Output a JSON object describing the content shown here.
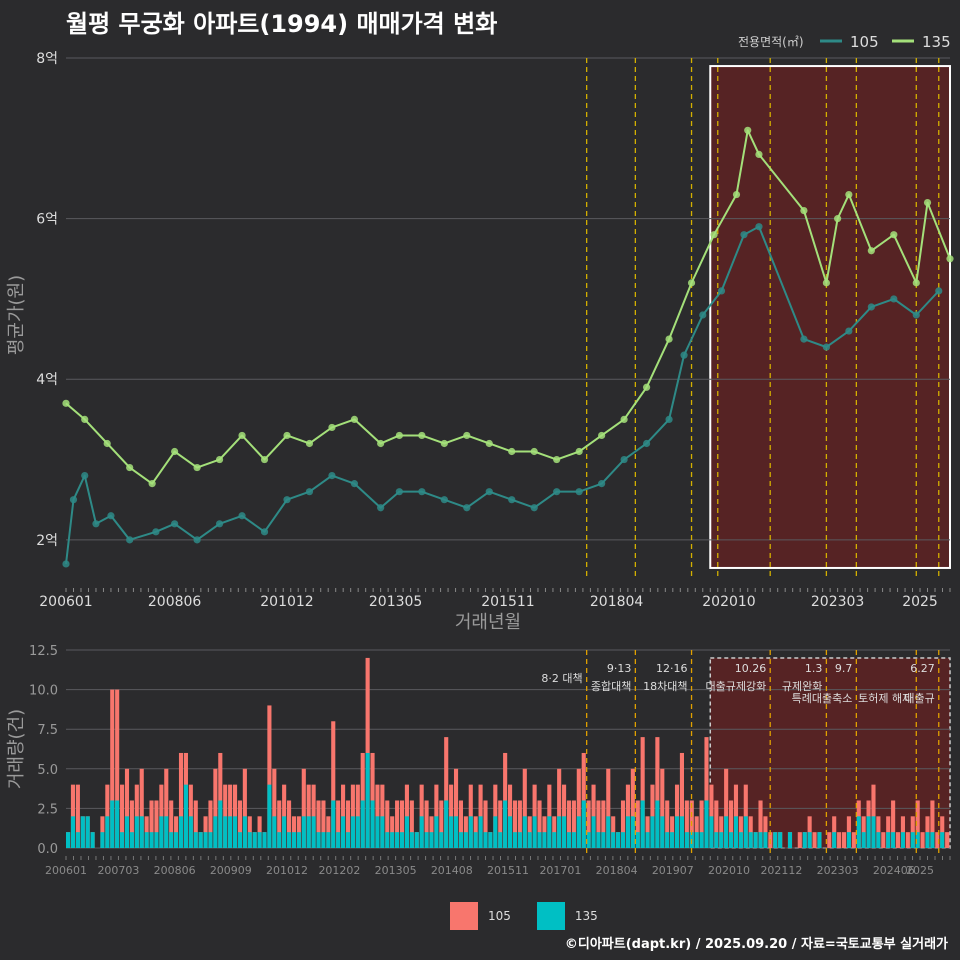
{
  "title": "월평 무궁화 아파트(1994) 매매가격 변화",
  "footer": "©디아파트(dapt.kr) / 2025.09.20 / 자료=국토교통부 실거래가",
  "colors": {
    "s105": "#2e8a87",
    "s135": "#a4e07a",
    "bar105": "#f8766d",
    "bar135": "#00bfc4",
    "policy": "#d4b000",
    "recent_box": "#ffffff",
    "recent_fill": "#7a1e1e"
  },
  "chart_data": [
    {
      "type": "line",
      "title": "",
      "xlabel": "거래년월",
      "ylabel": "평균가(원)",
      "legend": {
        "title": "전용면적(㎡)",
        "position": "top-right",
        "entries": [
          "105",
          "135"
        ]
      },
      "x_ticks": [
        "200601",
        "200806",
        "201012",
        "201305",
        "201511",
        "201804",
        "202010",
        "202303",
        "2025"
      ],
      "y_ticks": [
        "2억",
        "4억",
        "6억",
        "8억"
      ],
      "ylim_eok": [
        1.5,
        8.1
      ],
      "x_range": [
        "2006-01",
        "2025-09"
      ],
      "policy_lines": [
        "2017-08",
        "2018-09",
        "2019-12",
        "2020-07",
        "2021-09",
        "2022-12",
        "2023-08",
        "2024-12",
        "2025-06"
      ],
      "recent_box": {
        "from": "2020-05",
        "to": "2025-09"
      },
      "series": [
        {
          "name": "105",
          "points": [
            [
              "2006-01",
              1.7
            ],
            [
              "2006-03",
              2.5
            ],
            [
              "2006-06",
              2.8
            ],
            [
              "2006-09",
              2.2
            ],
            [
              "2007-01",
              2.3
            ],
            [
              "2007-06",
              2.0
            ],
            [
              "2008-01",
              2.1
            ],
            [
              "2008-06",
              2.2
            ],
            [
              "2008-12",
              2.0
            ],
            [
              "2009-06",
              2.2
            ],
            [
              "2009-12",
              2.3
            ],
            [
              "2010-06",
              2.1
            ],
            [
              "2010-12",
              2.5
            ],
            [
              "2011-06",
              2.6
            ],
            [
              "2011-12",
              2.8
            ],
            [
              "2012-06",
              2.7
            ],
            [
              "2013-01",
              2.4
            ],
            [
              "2013-06",
              2.6
            ],
            [
              "2013-12",
              2.6
            ],
            [
              "2014-06",
              2.5
            ],
            [
              "2014-12",
              2.4
            ],
            [
              "2015-06",
              2.6
            ],
            [
              "2015-12",
              2.5
            ],
            [
              "2016-06",
              2.4
            ],
            [
              "2016-12",
              2.6
            ],
            [
              "2017-06",
              2.6
            ],
            [
              "2017-12",
              2.7
            ],
            [
              "2018-06",
              3.0
            ],
            [
              "2018-12",
              3.2
            ],
            [
              "2019-06",
              3.5
            ],
            [
              "2019-10",
              4.3
            ],
            [
              "2020-03",
              4.8
            ],
            [
              "2020-08",
              5.1
            ],
            [
              "2021-02",
              5.8
            ],
            [
              "2021-06",
              5.9
            ],
            [
              "2022-06",
              4.5
            ],
            [
              "2022-12",
              4.4
            ],
            [
              "2023-06",
              4.6
            ],
            [
              "2023-12",
              4.9
            ],
            [
              "2024-06",
              5.0
            ],
            [
              "2024-12",
              4.8
            ],
            [
              "2025-06",
              5.1
            ]
          ]
        },
        {
          "name": "135",
          "points": [
            [
              "2006-01",
              3.7
            ],
            [
              "2006-06",
              3.5
            ],
            [
              "2006-12",
              3.2
            ],
            [
              "2007-06",
              2.9
            ],
            [
              "2007-12",
              2.7
            ],
            [
              "2008-06",
              3.1
            ],
            [
              "2008-12",
              2.9
            ],
            [
              "2009-06",
              3.0
            ],
            [
              "2009-12",
              3.3
            ],
            [
              "2010-06",
              3.0
            ],
            [
              "2010-12",
              3.3
            ],
            [
              "2011-06",
              3.2
            ],
            [
              "2011-12",
              3.4
            ],
            [
              "2012-06",
              3.5
            ],
            [
              "2013-01",
              3.2
            ],
            [
              "2013-06",
              3.3
            ],
            [
              "2013-12",
              3.3
            ],
            [
              "2014-06",
              3.2
            ],
            [
              "2014-12",
              3.3
            ],
            [
              "2015-06",
              3.2
            ],
            [
              "2015-12",
              3.1
            ],
            [
              "2016-06",
              3.1
            ],
            [
              "2016-12",
              3.0
            ],
            [
              "2017-06",
              3.1
            ],
            [
              "2017-12",
              3.3
            ],
            [
              "2018-06",
              3.5
            ],
            [
              "2018-12",
              3.9
            ],
            [
              "2019-06",
              4.5
            ],
            [
              "2019-12",
              5.2
            ],
            [
              "2020-06",
              5.8
            ],
            [
              "2020-12",
              6.3
            ],
            [
              "2021-03",
              7.1
            ],
            [
              "2021-06",
              6.8
            ],
            [
              "2022-06",
              6.1
            ],
            [
              "2022-12",
              5.2
            ],
            [
              "2023-03",
              6.0
            ],
            [
              "2023-06",
              6.3
            ],
            [
              "2023-12",
              5.6
            ],
            [
              "2024-06",
              5.8
            ],
            [
              "2024-12",
              5.2
            ],
            [
              "2025-03",
              6.2
            ],
            [
              "2025-09",
              5.5
            ]
          ]
        }
      ]
    },
    {
      "type": "bar",
      "xlabel": "",
      "ylabel": "거래량(건)",
      "y_ticks": [
        "0.0",
        "2.5",
        "5.0",
        "7.5",
        "10.0",
        "12.5"
      ],
      "ylim": [
        0,
        12.5
      ],
      "x_ticks": [
        "200601",
        "200703",
        "200806",
        "200909",
        "201012",
        "201202",
        "201305",
        "201408",
        "201511",
        "201701",
        "201804",
        "201907",
        "202010",
        "202112",
        "202303",
        "202406",
        "2025"
      ],
      "legend": {
        "position": "bottom",
        "entries": [
          "105",
          "135"
        ]
      },
      "annotations": [
        {
          "line1": "8·2 대책",
          "line2": "",
          "at": "2017-08"
        },
        {
          "line1": "9·13",
          "line2": "종합대책",
          "at": "2018-09"
        },
        {
          "line1": "12·16",
          "line2": "18차대책",
          "at": "2019-12"
        },
        {
          "line1": "10.26",
          "line2": "대출규제강화",
          "at": "2021-09"
        },
        {
          "line1": "1.3",
          "line2": "규제완화",
          "at": "2022-12"
        },
        {
          "line1": "9.7",
          "line2": "특례대출축소",
          "at": "2023-08"
        },
        {
          "line1": "",
          "line2": "토허제 해제",
          "at": "2024-12"
        },
        {
          "line1": "6.27",
          "line2": "대출규",
          "at": "2025-06"
        }
      ],
      "series": [
        {
          "name": "105",
          "values": [
            1,
            4,
            4,
            2,
            2,
            1,
            0,
            2,
            4,
            10,
            10,
            4,
            5,
            3,
            4,
            5,
            2,
            3,
            3,
            4,
            5,
            3,
            2,
            6,
            6,
            4,
            3,
            1,
            2,
            3,
            5,
            6,
            4,
            4,
            4,
            3,
            5,
            2,
            1,
            2,
            1,
            9,
            5,
            3,
            4,
            3,
            2,
            2,
            5,
            4,
            4,
            3,
            3,
            2,
            8,
            3,
            4,
            3,
            4,
            4,
            6,
            12,
            6,
            4,
            4,
            3,
            2,
            3,
            3,
            4,
            3,
            1,
            4,
            3,
            2,
            4,
            3,
            7,
            4,
            5,
            3,
            2,
            4,
            2,
            4,
            3,
            1,
            4,
            3,
            6,
            4,
            3,
            3,
            5,
            2,
            4,
            3,
            2,
            4,
            2,
            5,
            4,
            3,
            3,
            5,
            6,
            3,
            4,
            3,
            3,
            5,
            2,
            1,
            3,
            4,
            5,
            3,
            7,
            2,
            4,
            7,
            5,
            3,
            2,
            4,
            6,
            3,
            3,
            2,
            3,
            7,
            4,
            3,
            2,
            5,
            3,
            4,
            2,
            4,
            2,
            1,
            3,
            2,
            1,
            1,
            1,
            0,
            1,
            0,
            1,
            1,
            2,
            1,
            1,
            0,
            1,
            2,
            1,
            1,
            2,
            1,
            3,
            2,
            3,
            4,
            2,
            1,
            2,
            3,
            1,
            2,
            1,
            2,
            3,
            1,
            2,
            3,
            1,
            2,
            1
          ]
        },
        {
          "name": "135",
          "values": [
            1,
            2,
            1,
            2,
            2,
            1,
            0,
            1,
            2,
            3,
            3,
            1,
            2,
            1,
            2,
            2,
            1,
            1,
            1,
            2,
            2,
            1,
            1,
            2,
            4,
            2,
            1,
            1,
            1,
            1,
            2,
            3,
            2,
            2,
            2,
            1,
            2,
            1,
            1,
            1,
            1,
            4,
            2,
            1,
            2,
            1,
            1,
            1,
            2,
            2,
            2,
            1,
            1,
            1,
            3,
            1,
            2,
            1,
            2,
            2,
            3,
            6,
            3,
            2,
            2,
            1,
            1,
            1,
            1,
            2,
            1,
            1,
            2,
            1,
            1,
            2,
            1,
            3,
            2,
            2,
            1,
            1,
            2,
            1,
            2,
            1,
            1,
            2,
            1,
            3,
            2,
            1,
            1,
            2,
            1,
            2,
            1,
            1,
            2,
            1,
            2,
            2,
            1,
            1,
            2,
            3,
            1,
            2,
            1,
            1,
            2,
            1,
            1,
            1,
            2,
            2,
            1,
            3,
            1,
            2,
            3,
            2,
            1,
            1,
            2,
            2,
            1,
            1,
            1,
            1,
            3,
            2,
            1,
            1,
            2,
            1,
            2,
            1,
            2,
            1,
            1,
            1,
            1,
            0,
            1,
            1,
            0,
            1,
            0,
            0,
            1,
            1,
            0,
            1,
            0,
            0,
            1,
            0,
            0,
            1,
            0,
            2,
            1,
            2,
            2,
            1,
            0,
            1,
            1,
            0,
            1,
            0,
            1,
            1,
            0,
            1,
            1,
            0,
            1,
            0
          ]
        }
      ]
    }
  ]
}
